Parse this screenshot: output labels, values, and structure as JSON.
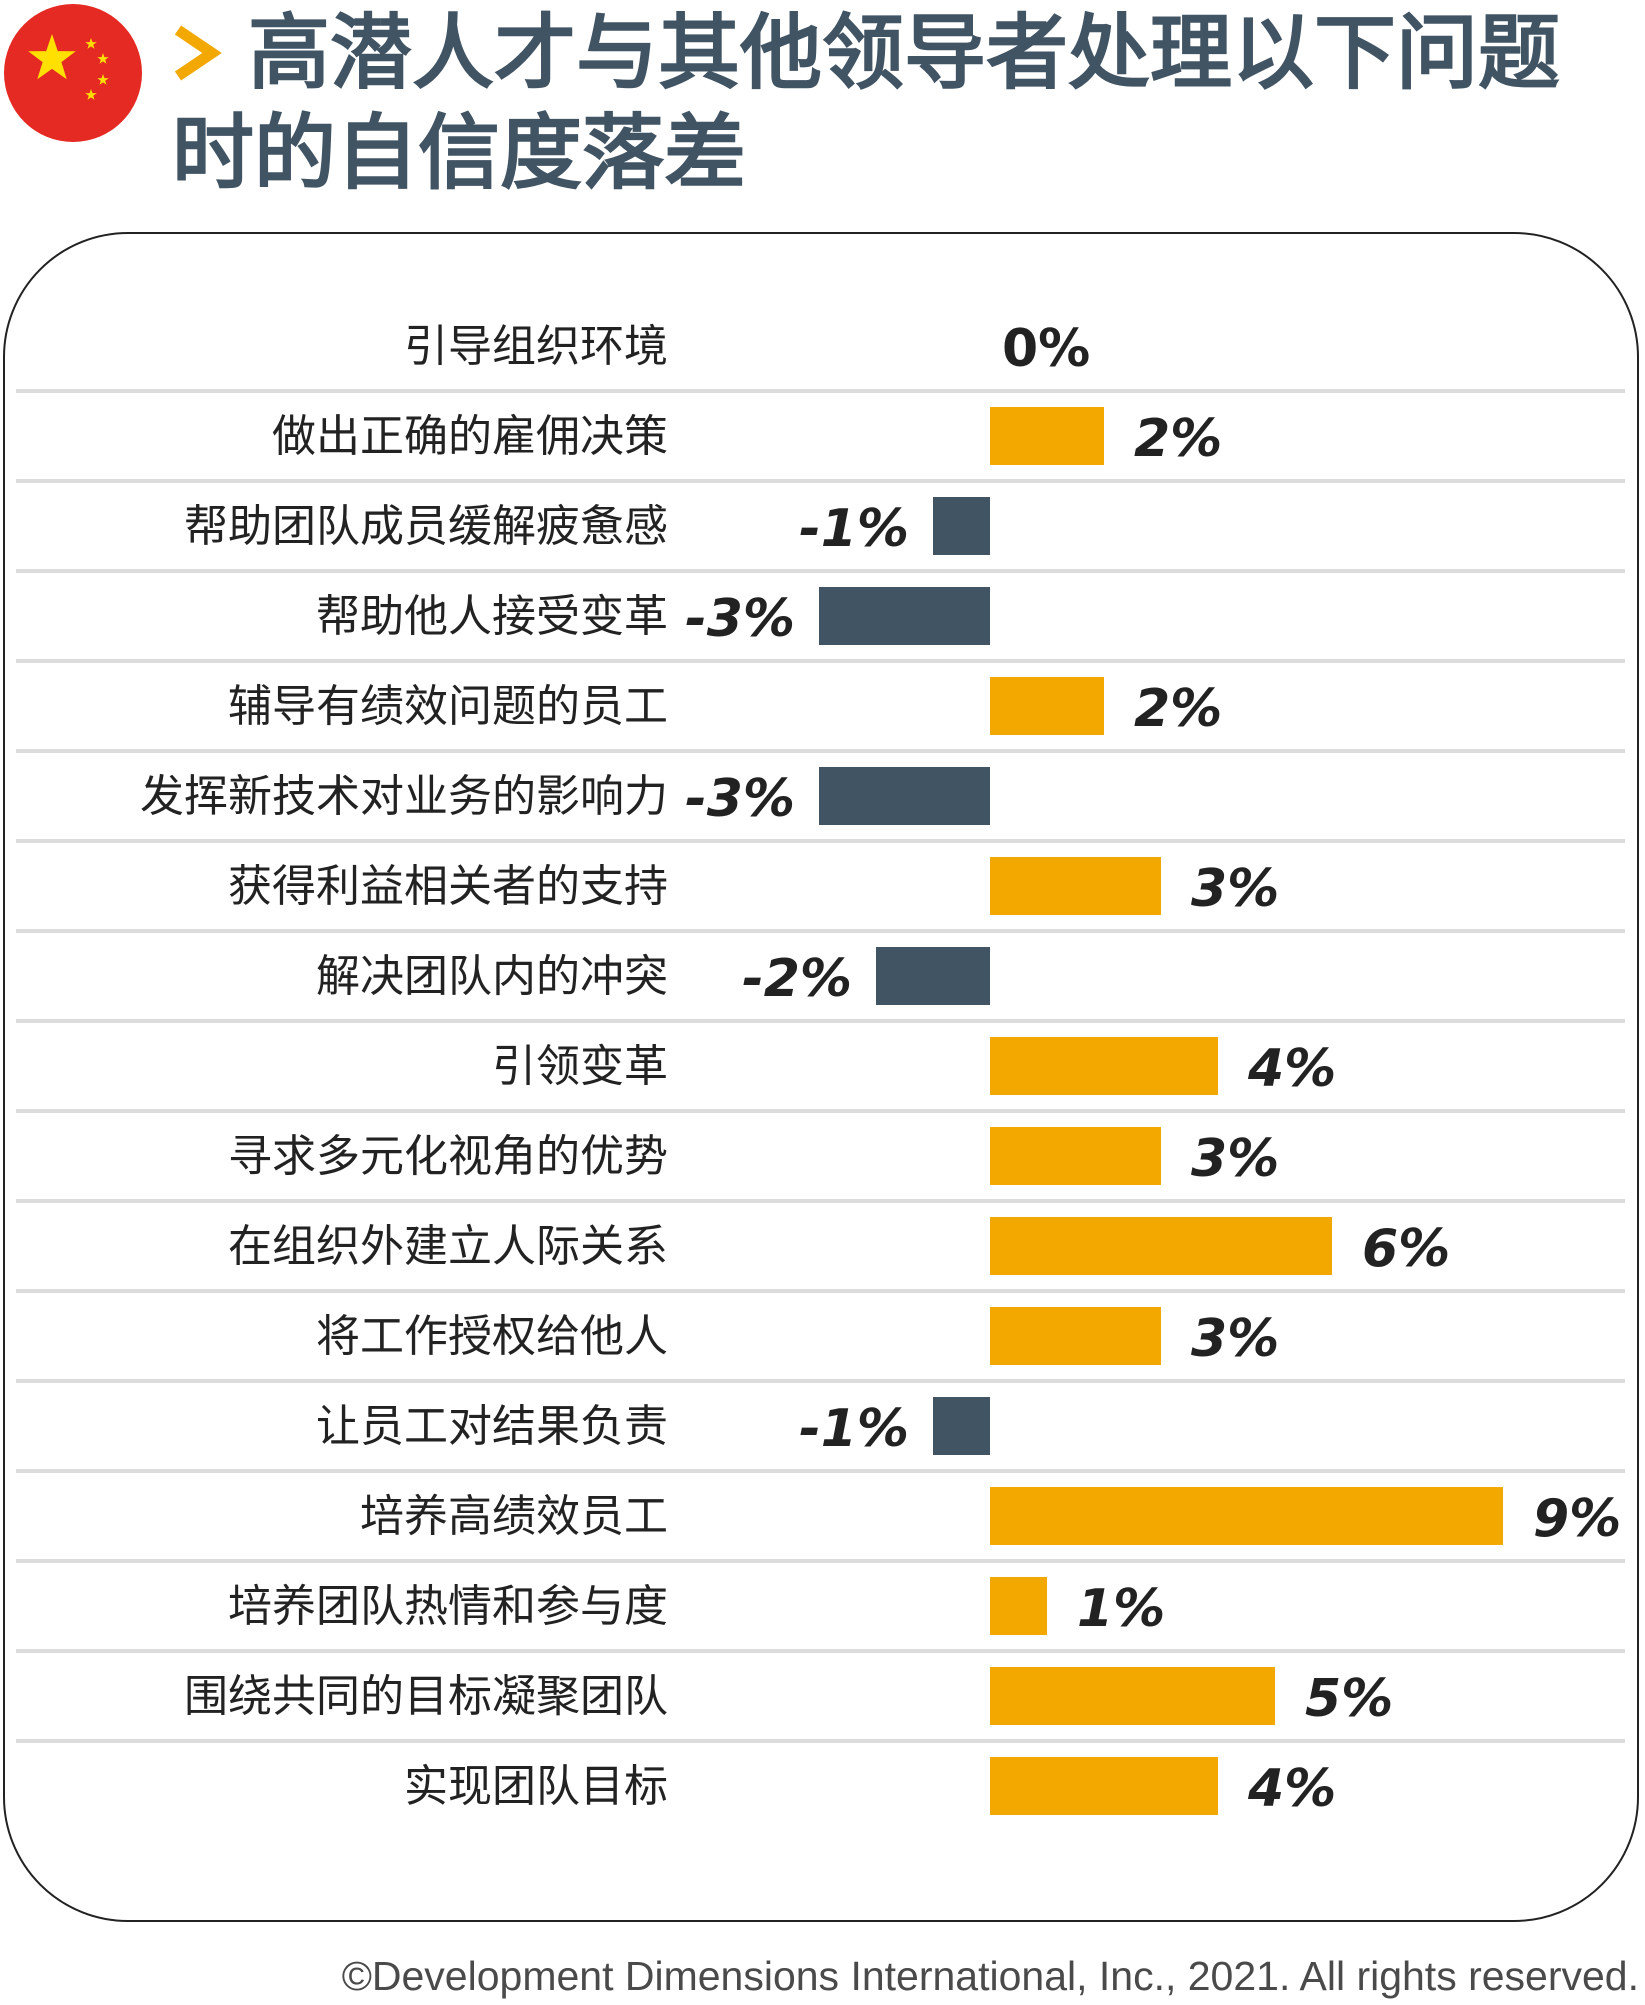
{
  "header": {
    "flag_icon": "china-flag-icon",
    "arrow_icon": "chevron-right-icon",
    "title_line1": "高潜人才与其他领导者处理以下问题",
    "title_line2": "时的自信度落差"
  },
  "colors": {
    "positive": "#F3A800",
    "negative": "#415464",
    "title": "#415464",
    "separator": "#dcdcdc",
    "flag_red": "#E52A23",
    "flag_star": "#FFE000"
  },
  "chart_data": {
    "type": "bar",
    "orientation": "horizontal",
    "unit": "%",
    "categories": [
      "引导组织环境",
      "做出正确的雇佣决策",
      "帮助团队成员缓解疲惫感",
      "帮助他人接受变革",
      "辅导有绩效问题的员工",
      "发挥新技术对业务的影响力",
      "获得利益相关者的支持",
      "解决团队内的冲突",
      "引领变革",
      "寻求多元化视角的优势",
      "在组织外建立人际关系",
      "将工作授权给他人",
      "让员工对结果负责",
      "培养高绩效员工",
      "培养团队热情和参与度",
      "围绕共同的目标凝聚团队",
      "实现团队目标"
    ],
    "values": [
      0,
      2,
      -1,
      -3,
      2,
      -3,
      3,
      -2,
      4,
      3,
      6,
      3,
      -1,
      9,
      1,
      5,
      4
    ],
    "value_labels": [
      "0%",
      "2%",
      "-1%",
      "-3%",
      "2%",
      "-3%",
      "3%",
      "-2%",
      "4%",
      "3%",
      "6%",
      "3%",
      "-1%",
      "9%",
      "1%",
      "5%",
      "4%"
    ]
  },
  "footer": {
    "copyright": "©Development Dimensions International, Inc., 2021. All rights reserved."
  }
}
